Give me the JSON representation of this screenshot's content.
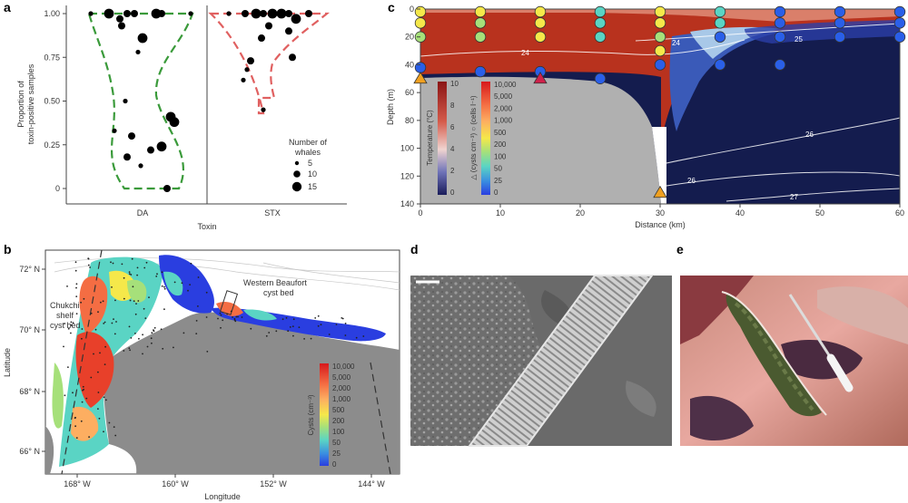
{
  "panels": {
    "a": {
      "label": "a",
      "ylabel_line1": "Proportion of",
      "ylabel_line2": "toxin-positive samples",
      "xlabel": "Toxin",
      "categories": [
        "DA",
        "STX"
      ],
      "yticks": [
        "0",
        "0.25",
        "0.50",
        "0.75",
        "1.00"
      ],
      "legend_title_line1": "Number of",
      "legend_title_line2": "whales",
      "legend_sizes": [
        "5",
        "10",
        "15"
      ]
    },
    "b": {
      "label": "b",
      "ylabel": "Latitude",
      "xlabel": "Longitude",
      "lat_ticks": [
        "72° N",
        "70° N",
        "68° N",
        "66° N"
      ],
      "lon_ticks": [
        "168° W",
        "160° W",
        "152° W",
        "144° W"
      ],
      "annot_chukchi": [
        "Chukchi",
        "shelf",
        "cyst bed"
      ],
      "annot_beaufort": [
        "Western Beaufort",
        "cyst bed"
      ],
      "colorbar_label": "Cysts (cm⁻³)",
      "colorbar_ticks": [
        "10,000",
        "5,000",
        "2,000",
        "1,000",
        "500",
        "200",
        "100",
        "50",
        "25",
        "0"
      ]
    },
    "c": {
      "label": "c",
      "ylabel": "Depth (m)",
      "xlabel": "Distance (km)",
      "yticks": [
        "0",
        "20",
        "40",
        "60",
        "80",
        "100",
        "120",
        "140"
      ],
      "xticks": [
        "0",
        "10",
        "20",
        "30",
        "40",
        "50",
        "60"
      ],
      "temp_label": "Temperature (°C)",
      "temp_ticks": [
        "10",
        "8",
        "6",
        "4",
        "2",
        "0"
      ],
      "cell_label": "△ (cysts cm⁻³) ○ (cells l⁻¹)",
      "cell_ticks": [
        "10,000",
        "5,000",
        "2,000",
        "1,000",
        "500",
        "200",
        "100",
        "50",
        "25",
        "0"
      ],
      "contours": [
        "24",
        "24",
        "25",
        "26",
        "26",
        "27"
      ]
    },
    "d": {
      "label": "d"
    },
    "e": {
      "label": "e"
    }
  },
  "chart_data": [
    {
      "type": "violin",
      "panel": "a",
      "categories": [
        "DA",
        "STX"
      ],
      "ylim": [
        0,
        1
      ],
      "ylabel": "Proportion of toxin-positive samples",
      "xlabel": "Toxin",
      "points": {
        "DA": [
          {
            "y": 1.0,
            "n": 5
          },
          {
            "y": 1.0,
            "n": 10
          },
          {
            "y": 1.0,
            "n": 10
          },
          {
            "y": 1.0,
            "n": 15
          },
          {
            "y": 1.0,
            "n": 15
          },
          {
            "y": 1.0,
            "n": 10
          },
          {
            "y": 1.0,
            "n": 5
          },
          {
            "y": 0.93,
            "n": 10
          },
          {
            "y": 0.97,
            "n": 10
          },
          {
            "y": 0.86,
            "n": 15
          },
          {
            "y": 0.78,
            "n": 5
          },
          {
            "y": 0.5,
            "n": 5
          },
          {
            "y": 0.41,
            "n": 15
          },
          {
            "y": 0.38,
            "n": 15
          },
          {
            "y": 0.33,
            "n": 5
          },
          {
            "y": 0.3,
            "n": 10
          },
          {
            "y": 0.24,
            "n": 15
          },
          {
            "y": 0.22,
            "n": 10
          },
          {
            "y": 0.13,
            "n": 5
          },
          {
            "y": 0.18,
            "n": 10
          },
          {
            "y": 0.0,
            "n": 10
          }
        ],
        "STX": [
          {
            "y": 1.0,
            "n": 5
          },
          {
            "y": 1.0,
            "n": 10
          },
          {
            "y": 1.0,
            "n": 10
          },
          {
            "y": 1.0,
            "n": 15
          },
          {
            "y": 1.0,
            "n": 15
          },
          {
            "y": 1.0,
            "n": 10
          },
          {
            "y": 1.0,
            "n": 10
          },
          {
            "y": 1.0,
            "n": 15
          },
          {
            "y": 0.97,
            "n": 15
          },
          {
            "y": 0.93,
            "n": 10
          },
          {
            "y": 0.9,
            "n": 10
          },
          {
            "y": 0.86,
            "n": 10
          },
          {
            "y": 0.75,
            "n": 10
          },
          {
            "y": 0.73,
            "n": 10
          },
          {
            "y": 0.68,
            "n": 5
          },
          {
            "y": 0.62,
            "n": 5
          },
          {
            "y": 0.45,
            "n": 5
          }
        ]
      }
    },
    {
      "type": "section",
      "panel": "c",
      "xlim": [
        0,
        60
      ],
      "ylim": [
        0,
        140
      ],
      "stations": [
        {
          "x": 0,
          "depths": [
            0,
            10,
            20
          ],
          "level": [
            5,
            5,
            4
          ],
          "bottom_depth": 42
        },
        {
          "x": 7.5,
          "depths": [
            0,
            10,
            20
          ],
          "level": [
            5,
            4,
            4
          ],
          "bottom_depth": 45
        },
        {
          "x": 15,
          "depths": [
            0,
            10,
            20
          ],
          "level": [
            5,
            5,
            5
          ],
          "bottom_depth": 45
        },
        {
          "x": 22.5,
          "depths": [
            0,
            10,
            20
          ],
          "level": [
            3,
            3,
            3
          ],
          "bottom_depth": 50
        },
        {
          "x": 30,
          "depths": [
            0,
            10,
            20,
            30
          ],
          "level": [
            5,
            5,
            4,
            5
          ],
          "bottom_depth": 40
        },
        {
          "x": 37.5,
          "depths": [
            0,
            10,
            20
          ],
          "level": [
            3,
            3,
            1
          ],
          "bottom_depth": 40
        },
        {
          "x": 45,
          "depths": [
            0,
            10,
            20
          ],
          "level": [
            1,
            1,
            1
          ],
          "bottom_depth": 40
        },
        {
          "x": 52.5,
          "depths": [
            0,
            10,
            20
          ],
          "level": [
            1,
            1,
            1
          ],
          "bottom_depth": null
        },
        {
          "x": 60,
          "depths": [
            0,
            10,
            20
          ],
          "level": [
            1,
            1,
            1
          ],
          "bottom_depth": null
        }
      ]
    }
  ],
  "colors": {
    "violin_da": "#3a9a3a",
    "violin_stx": "#e06060",
    "land": "#8c8c8c",
    "warm": "#b8321e",
    "cold": "#141c4e"
  }
}
